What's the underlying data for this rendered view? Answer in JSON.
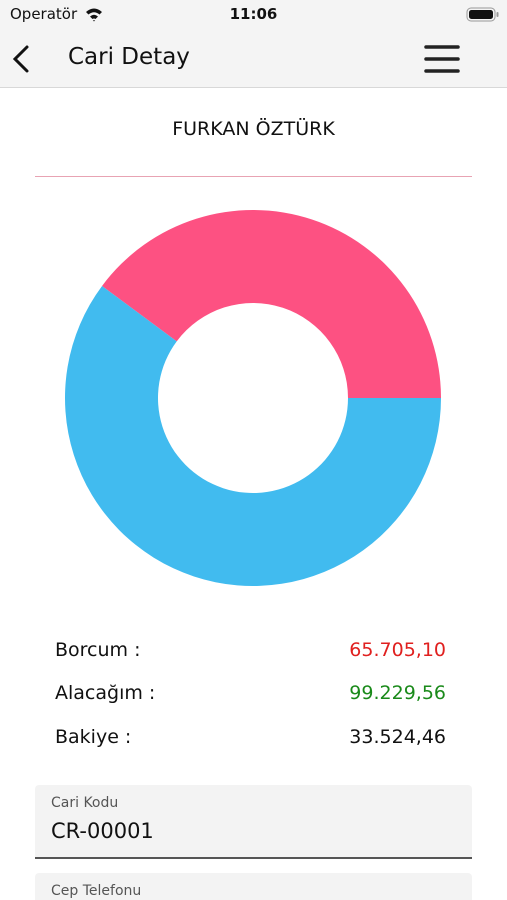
{
  "status_bar": {
    "carrier": "Operatör",
    "time": "11:06"
  },
  "nav": {
    "title": "Cari Detay"
  },
  "customer_name": "FURKAN ÖZTÜRK",
  "chart_data": {
    "type": "donut",
    "categories": [
      "Borcum :",
      "Alacağım :"
    ],
    "values": [
      65705.1,
      99229.56
    ],
    "value_labels": [
      "65.705,10",
      "99.229,56"
    ],
    "colors": [
      "#fd5182",
      "#41bbef"
    ],
    "label_colors": [
      "#e0201f",
      "#1a8a1a"
    ]
  },
  "balance": {
    "label": "Bakiye :",
    "value": "33.524,46"
  },
  "fields": [
    {
      "label": "Cari Kodu",
      "value": "CR-00001"
    },
    {
      "label": "Cep Telefonu"
    }
  ]
}
